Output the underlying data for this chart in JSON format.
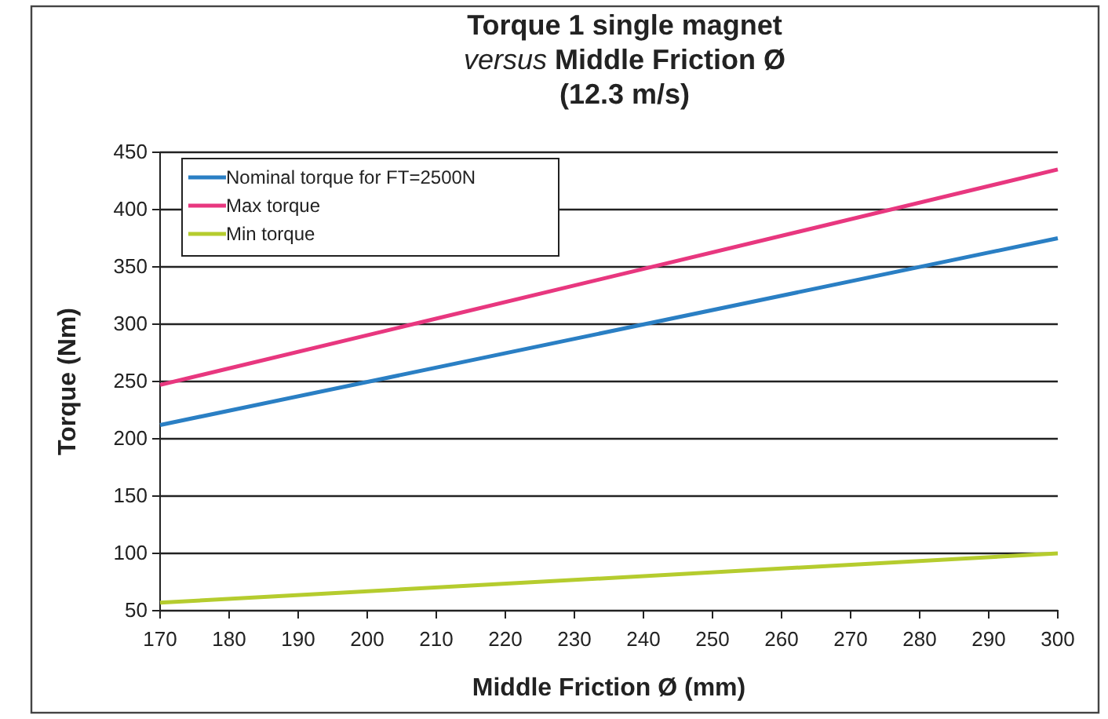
{
  "chart_data": {
    "type": "line",
    "title": "Torque 1 single magnet\nversus Middle Friction Ø\n(12.3 m/s)",
    "xlabel": "Middle Friction Ø (mm)",
    "ylabel": "Torque (Nm)",
    "x": [
      170,
      300
    ],
    "series": [
      {
        "name": "Nominal torque for FT=2500N",
        "color": "#2a7fc4",
        "values": [
          212,
          375
        ]
      },
      {
        "name": "Max torque",
        "color": "#e8377f",
        "values": [
          247,
          435
        ]
      },
      {
        "name": "Min torque",
        "color": "#b5cc2e",
        "values": [
          57,
          100
        ]
      }
    ],
    "xlim": [
      170,
      300
    ],
    "xticks": [
      170,
      180,
      190,
      200,
      210,
      220,
      230,
      240,
      250,
      260,
      270,
      280,
      290,
      300
    ],
    "ylim": [
      50,
      450
    ],
    "yticks": [
      50,
      100,
      150,
      200,
      250,
      300,
      350,
      400,
      450
    ],
    "grid": "y",
    "legend": "top left",
    "marker": "none",
    "line_style": "solid"
  }
}
